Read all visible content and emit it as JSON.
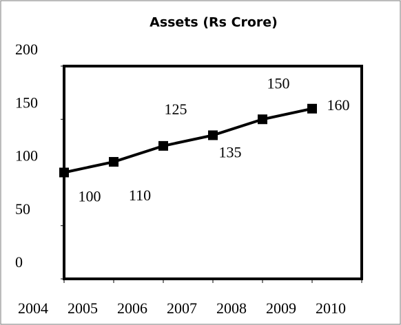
{
  "chart_data": {
    "type": "line",
    "title": "Assets (Rs Crore)",
    "categories": [
      "2004",
      "2005",
      "2006",
      "2007",
      "2008",
      "2009",
      "2010"
    ],
    "values": [
      100,
      110,
      125,
      135,
      150,
      160,
      null
    ],
    "color": "#000000",
    "ylim": [
      0,
      200
    ],
    "yticks": [
      0,
      50,
      100,
      150,
      200
    ],
    "grid": false
  }
}
